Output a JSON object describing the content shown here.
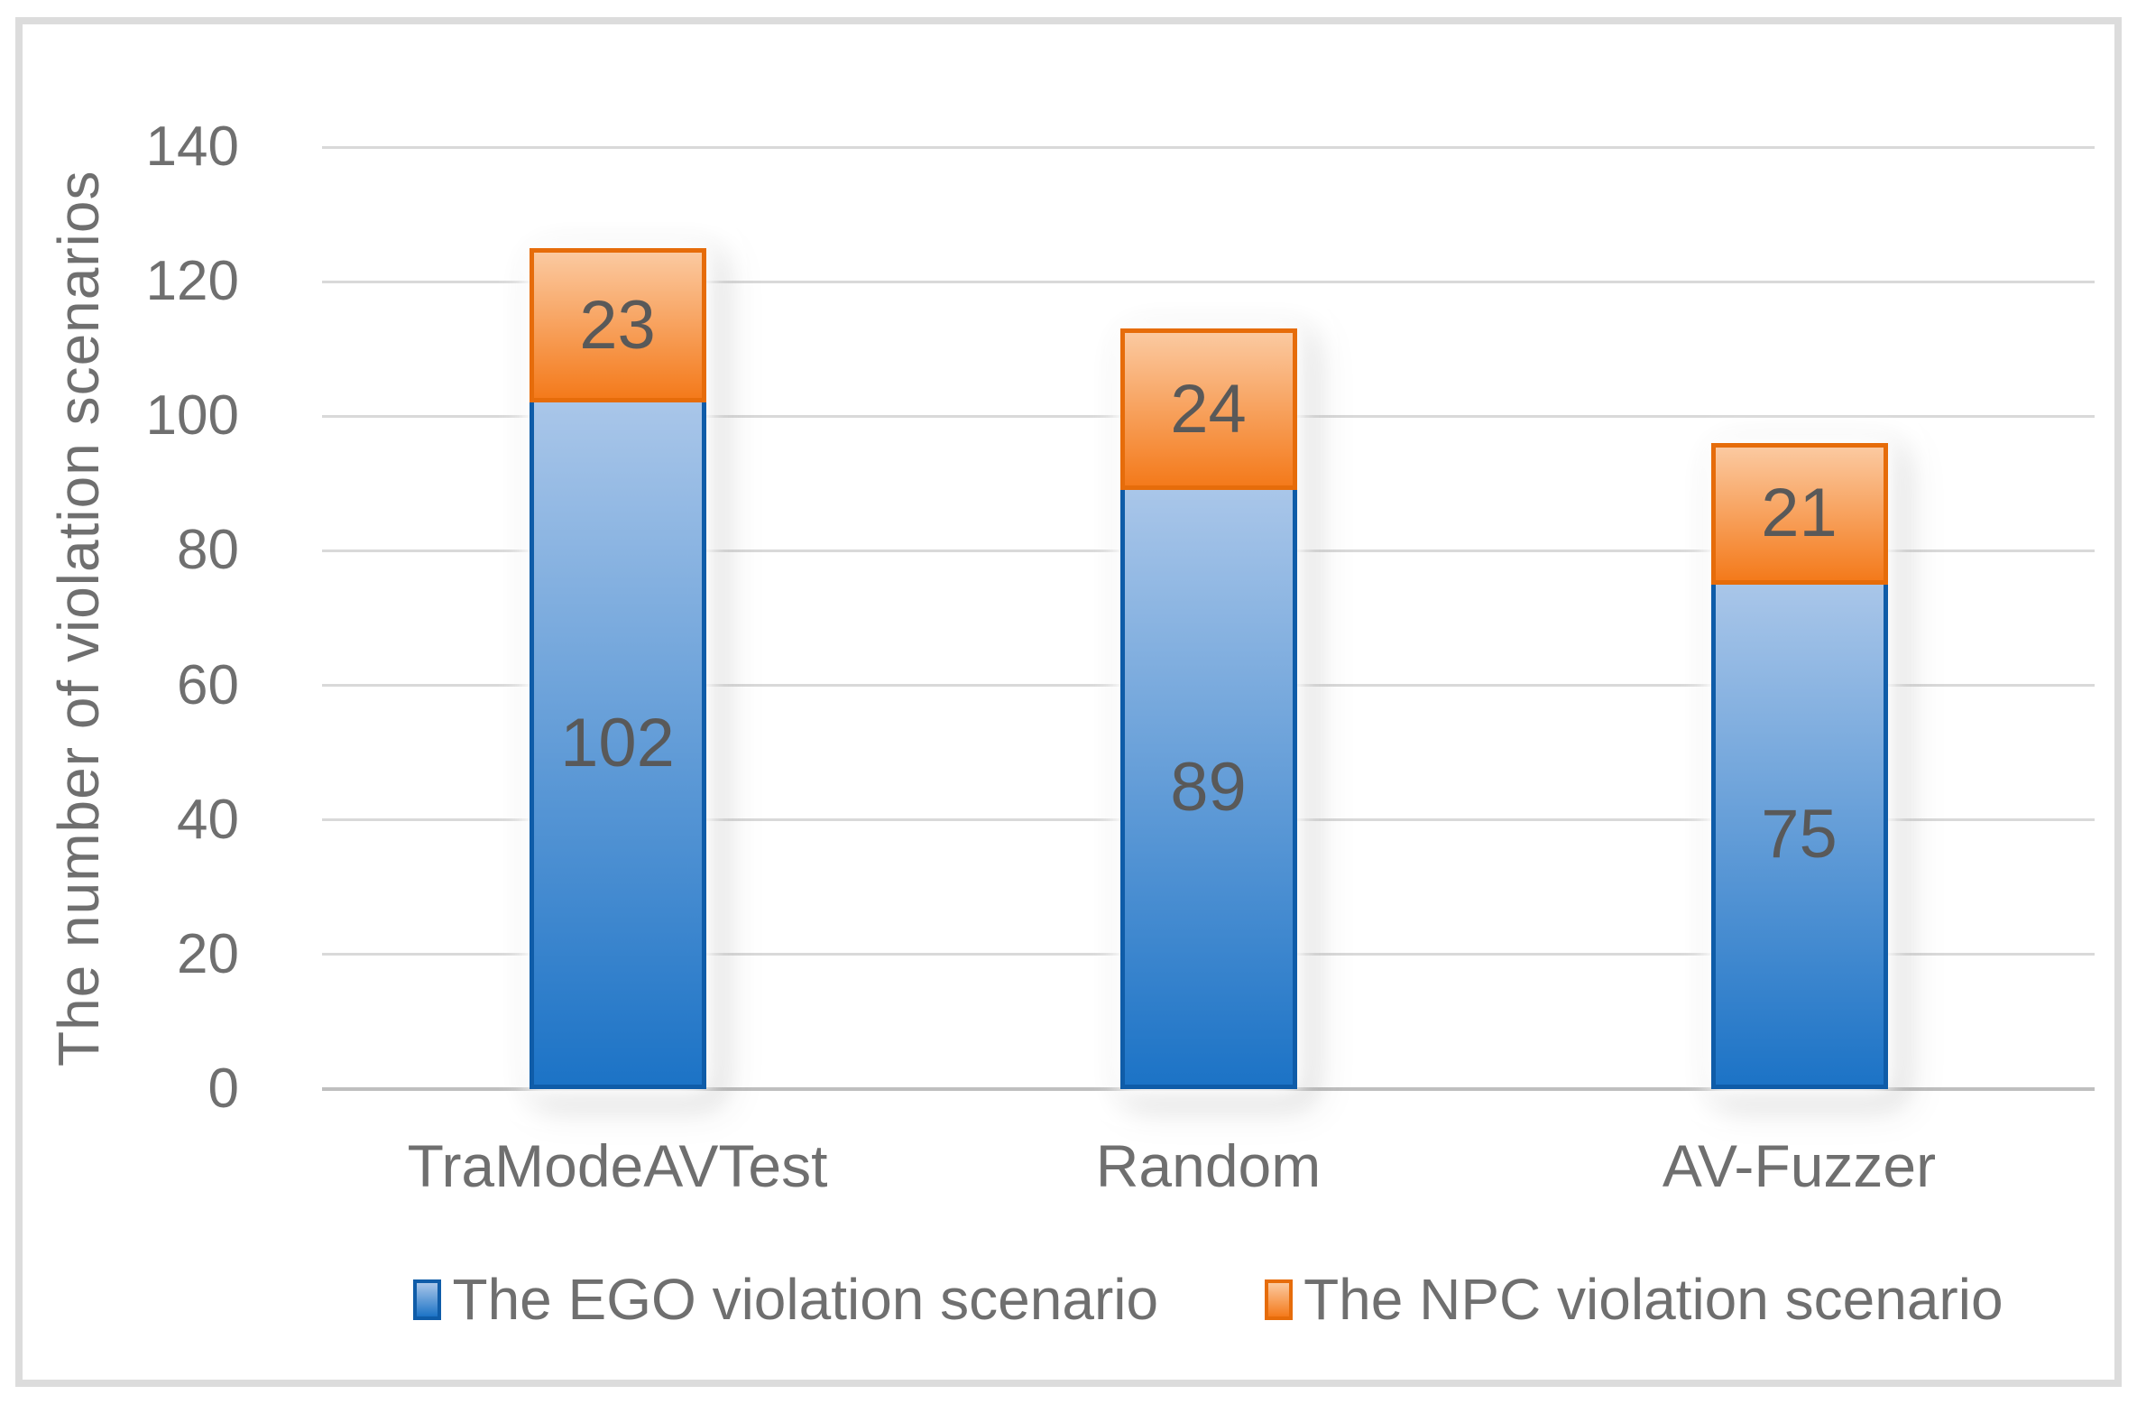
{
  "chart_data": {
    "type": "bar",
    "stacked": true,
    "title": "",
    "xlabel": "",
    "ylabel": "The number of violation scenarios",
    "categories": [
      "TraModeAVTest",
      "Random",
      "AV-Fuzzer"
    ],
    "series": [
      {
        "name": "The EGO violation scenario",
        "values": [
          102,
          89,
          75
        ],
        "color_top": "#a9c6e9",
        "color_bottom": "#1c73c6",
        "border_color": "#0f5ca8"
      },
      {
        "name": "The NPC violation scenario",
        "values": [
          23,
          24,
          21
        ],
        "color_top": "#fbc9a0",
        "color_bottom": "#f47a1b",
        "border_color": "#e66c0a"
      }
    ],
    "stack_totals": [
      125,
      113,
      96
    ],
    "ylim": [
      0,
      140
    ],
    "yticks": [
      0,
      20,
      40,
      60,
      80,
      100,
      120,
      140
    ],
    "grid": true,
    "legend_position": "bottom"
  },
  "colors": {
    "gridline": "#d9d9d9",
    "axis_line": "#bfbfbf",
    "frame_border": "#dcdcdc",
    "tick_text": "#6f6f6f",
    "value_text": "#595959",
    "background": "#ffffff"
  }
}
